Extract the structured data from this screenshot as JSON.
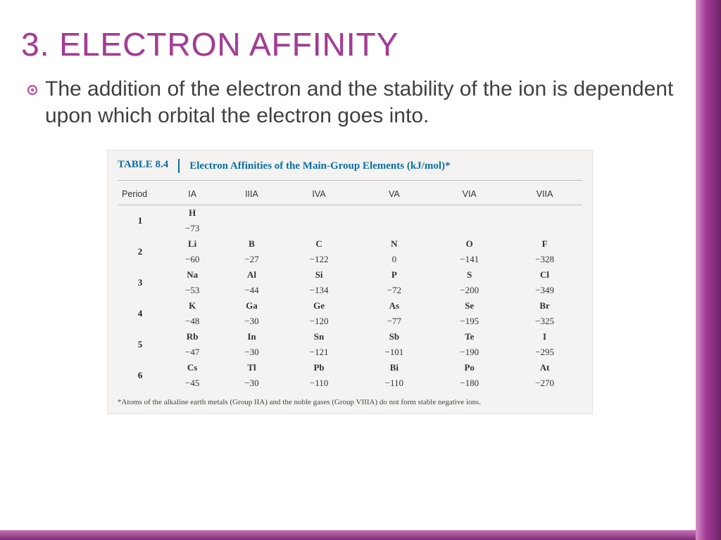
{
  "slide": {
    "title": "3.  Electron Affinity",
    "bullet": "The addition of the electron and the stability of the ion is dependent upon which orbital the electron goes into.",
    "bullet_icon_color": "#b84fa8",
    "title_color": "#a33b95",
    "body_text_color": "#404040",
    "accent_gradient": [
      "#d891c8",
      "#a33b95",
      "#6d2265"
    ],
    "bottom_gradient": [
      "#c86fb9",
      "#7f2b75"
    ]
  },
  "table": {
    "label": "TABLE 8.4",
    "title": "Electron Affinities of the Main-Group Elements (kJ/mol)*",
    "header_color": "#0b6fa6",
    "background_color": "#f4f3f1",
    "border_color": "#e3e2e0",
    "columns": [
      "Period",
      "IA",
      "IIIA",
      "IVA",
      "VA",
      "VIA",
      "VIIA"
    ],
    "rows": [
      {
        "period": "1",
        "elements": [
          "H",
          "",
          "",
          "",
          "",
          ""
        ],
        "values": [
          "−73",
          "",
          "",
          "",
          "",
          ""
        ]
      },
      {
        "period": "2",
        "elements": [
          "Li",
          "B",
          "C",
          "N",
          "O",
          "F"
        ],
        "values": [
          "−60",
          "−27",
          "−122",
          "0",
          "−141",
          "−328"
        ]
      },
      {
        "period": "3",
        "elements": [
          "Na",
          "Al",
          "Si",
          "P",
          "S",
          "Cl"
        ],
        "values": [
          "−53",
          "−44",
          "−134",
          "−72",
          "−200",
          "−349"
        ]
      },
      {
        "period": "4",
        "elements": [
          "K",
          "Ga",
          "Ge",
          "As",
          "Se",
          "Br"
        ],
        "values": [
          "−48",
          "−30",
          "−120",
          "−77",
          "−195",
          "−325"
        ]
      },
      {
        "period": "5",
        "elements": [
          "Rb",
          "In",
          "Sn",
          "Sb",
          "Te",
          "I"
        ],
        "values": [
          "−47",
          "−30",
          "−121",
          "−101",
          "−190",
          "−295"
        ]
      },
      {
        "period": "6",
        "elements": [
          "Cs",
          "Tl",
          "Pb",
          "Bi",
          "Po",
          "At"
        ],
        "values": [
          "−45",
          "−30",
          "−110",
          "−110",
          "−180",
          "−270"
        ]
      }
    ],
    "footnote": "*Atoms of the alkaline earth metals (Group IIA) and the noble gases (Group VIIIA) do not form stable negative ions."
  }
}
